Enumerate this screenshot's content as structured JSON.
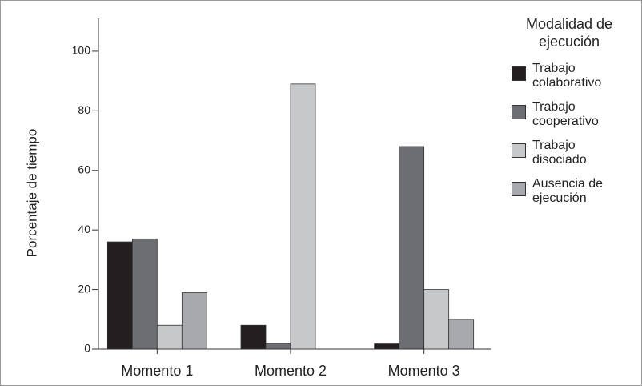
{
  "chart_data": {
    "type": "bar",
    "y_label": "Porcentaje de tiempo",
    "legend_title": "Modalidad de ejecución",
    "categories": [
      "Momento 1",
      "Momento 2",
      "Momento 3"
    ],
    "series": [
      {
        "name": "Trabajo colaborativo",
        "color": "#231f20",
        "values": [
          36,
          8,
          2
        ]
      },
      {
        "name": "Trabajo cooperativo",
        "color": "#6d6e71",
        "values": [
          37,
          2,
          68
        ]
      },
      {
        "name": "Trabajo disociado",
        "color": "#c7c8ca",
        "values": [
          8,
          89,
          20
        ]
      },
      {
        "name": "Ausencia de ejecución",
        "color": "#a7a9ac",
        "values": [
          19,
          0,
          10
        ]
      }
    ],
    "ylim": [
      0,
      111
    ],
    "yticks": [
      0,
      20,
      40,
      60,
      80,
      100
    ],
    "legend": "right"
  }
}
